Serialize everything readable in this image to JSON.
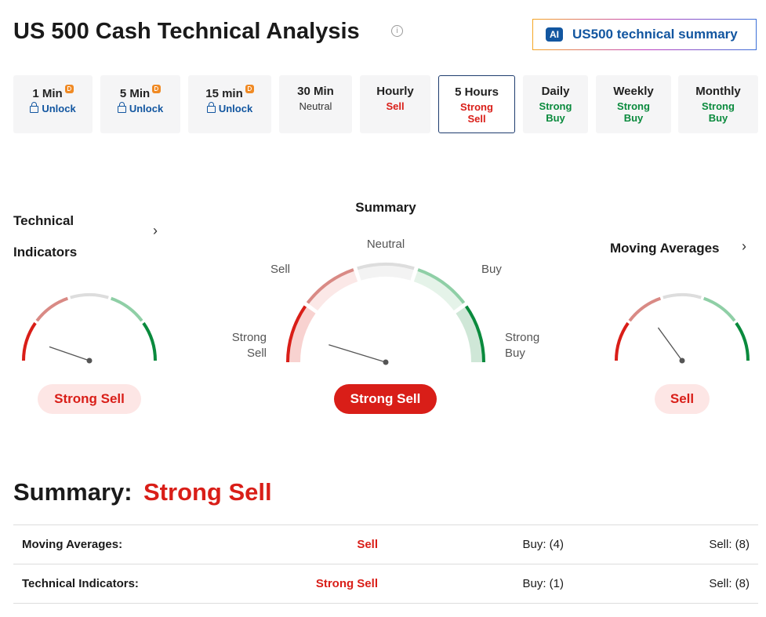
{
  "header": {
    "title": "US 500 Cash Technical Analysis",
    "info": "i",
    "ai_badge": "AI",
    "ai_button": "US500 technical summary"
  },
  "timeframes": [
    {
      "label": "1 Min",
      "status": "Unlock"
    },
    {
      "label": "5 Min",
      "status": "Unlock"
    },
    {
      "label": "15 min",
      "status": "Unlock"
    },
    {
      "label": "30 Min",
      "status": "Neutral"
    },
    {
      "label": "Hourly",
      "status": "Sell"
    },
    {
      "label": "5 Hours",
      "status": "Strong Sell"
    },
    {
      "label": "Daily",
      "status": "Strong Buy"
    },
    {
      "label": "Weekly",
      "status": "Strong Buy"
    },
    {
      "label": "Monthly",
      "status": "Strong Buy"
    }
  ],
  "gauges": {
    "technical": {
      "title": "Technical Indicators",
      "result": "Strong Sell"
    },
    "summary": {
      "title": "Summary",
      "labels": [
        "Strong Sell",
        "Sell",
        "Neutral",
        "Buy",
        "Strong Buy"
      ],
      "result": "Strong Sell"
    },
    "moving": {
      "title": "Moving Averages",
      "result": "Sell"
    }
  },
  "summary": {
    "label": "Summary:",
    "result": "Strong Sell",
    "rows": [
      [
        "Moving Averages:",
        "Sell",
        "Buy: (4)",
        "Sell: (8)"
      ],
      [
        "Technical Indicators:",
        "Strong Sell",
        "Buy: (1)",
        "Sell: (8)"
      ]
    ]
  }
}
